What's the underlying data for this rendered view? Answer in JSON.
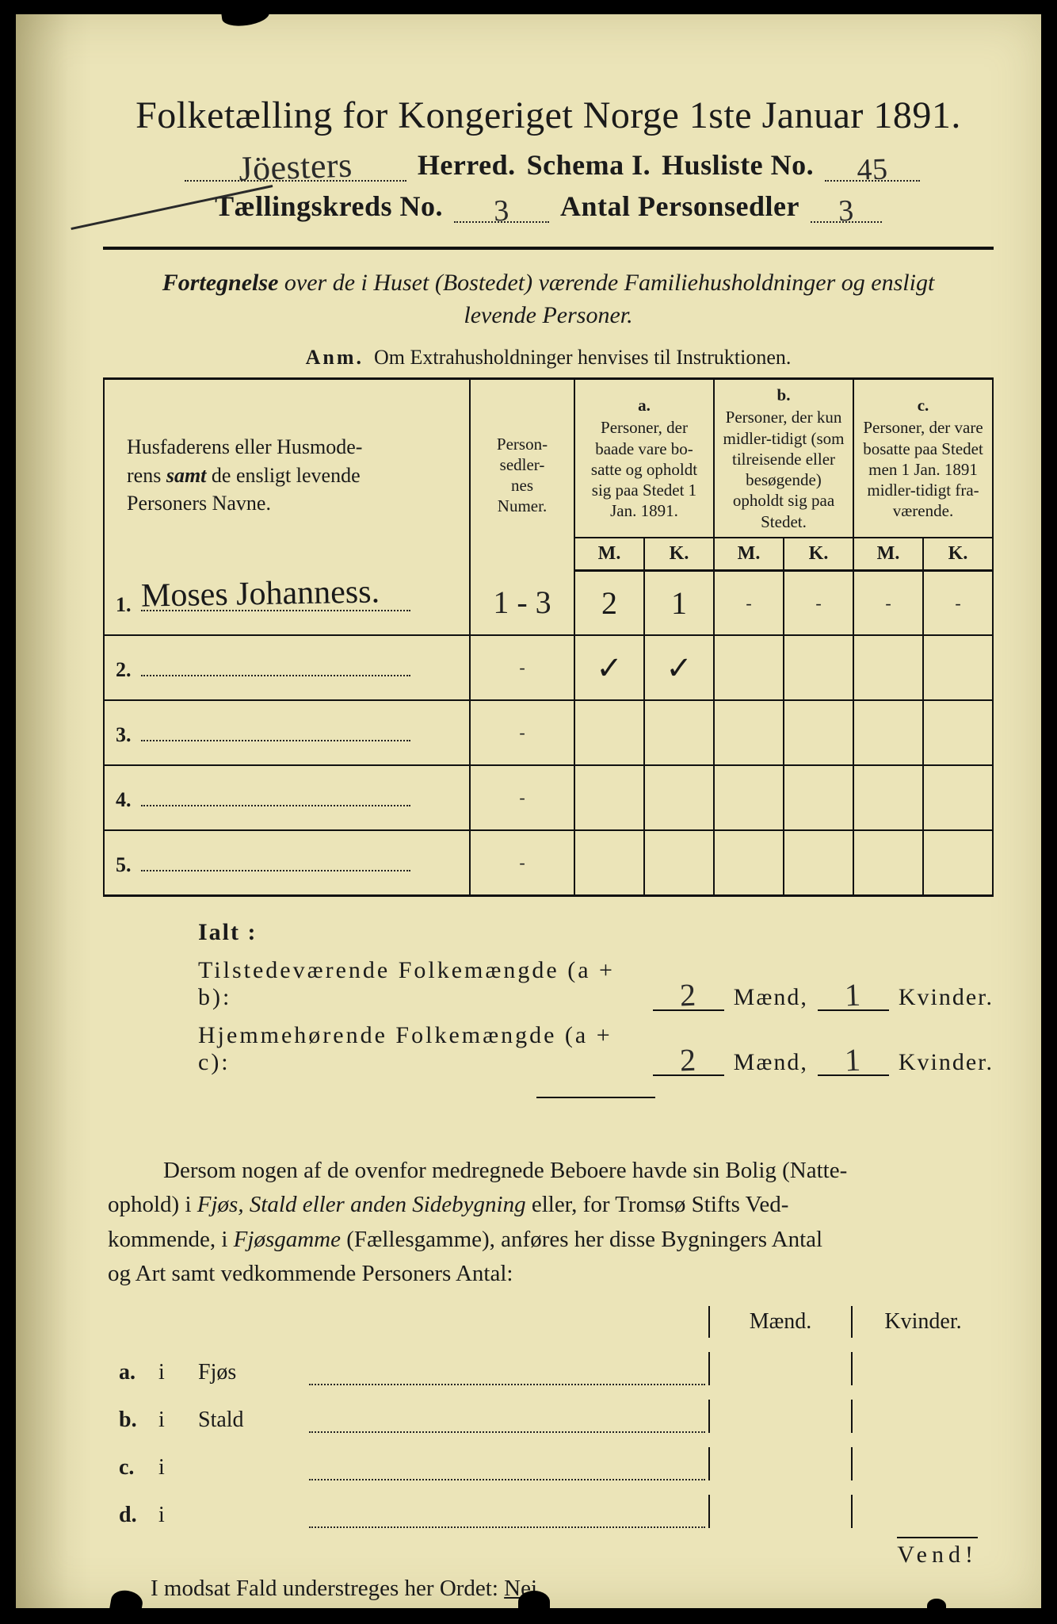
{
  "colors": {
    "paper": "#ebe4b8",
    "ink": "#1a1a1a",
    "frame": "#000000",
    "shadow": "rgba(100,90,40,0.35)"
  },
  "header": {
    "title": "Folketælling for Kongeriget Norge 1ste Januar 1891.",
    "herred_hand": "Jöesters",
    "herred_label": "Herred.",
    "schema_label": "Schema I.",
    "husliste_label": "Husliste No.",
    "husliste_hand": "45",
    "kreds_label": "Tællingskreds No.",
    "kreds_hand": "3",
    "antal_label": "Antal  Personsedler",
    "antal_hand": "3"
  },
  "intro": {
    "lead": "Fortegnelse",
    "rest1": " over de i Huset (Bostedet) værende Familiehusholdninger og ensligt",
    "rest2": "levende Personer.",
    "anm_lbl": "Anm.",
    "anm_txt": "Om Extrahusholdninger henvises til Instruktionen."
  },
  "table": {
    "col_name_hdr1": "Husfaderens eller Husmode-",
    "col_name_hdr2": "rens ",
    "col_name_hdr2_em": "samt",
    "col_name_hdr2b": " de ensligt levende",
    "col_name_hdr3": "Personers Navne.",
    "col_num_hdr": "Person-\nsedler-\nnes\nNumer.",
    "col_a_tag": "a.",
    "col_a_txt": "Personer, der baade vare bo-satte og opholdt sig paa Stedet 1 Jan. 1891.",
    "col_b_tag": "b.",
    "col_b_txt": "Personer, der kun midler-tidigt (som tilreisende eller besøgende) opholdt sig paa Stedet.",
    "col_c_tag": "c.",
    "col_c_txt": "Personer, der vare bosatte paa Stedet men 1 Jan. 1891 midler-tidigt fra-værende.",
    "mk_m": "M.",
    "mk_k": "K.",
    "rows": [
      {
        "n": "1.",
        "name_hand": "Moses Johanness.",
        "num": "1 - 3",
        "a_m": "2",
        "a_k": "1",
        "b_m": "-",
        "b_k": "-",
        "c_m": "-",
        "c_k": "-"
      },
      {
        "n": "2.",
        "name_hand": "",
        "num": "-",
        "a_m": "✓",
        "a_k": "✓",
        "b_m": "",
        "b_k": "",
        "c_m": "",
        "c_k": ""
      },
      {
        "n": "3.",
        "name_hand": "",
        "num": "-",
        "a_m": "",
        "a_k": "",
        "b_m": "",
        "b_k": "",
        "c_m": "",
        "c_k": ""
      },
      {
        "n": "4.",
        "name_hand": "",
        "num": "-",
        "a_m": "",
        "a_k": "",
        "b_m": "",
        "b_k": "",
        "c_m": "",
        "c_k": ""
      },
      {
        "n": "5.",
        "name_hand": "",
        "num": "-",
        "a_m": "",
        "a_k": "",
        "b_m": "",
        "b_k": "",
        "c_m": "",
        "c_k": ""
      }
    ]
  },
  "ialt": {
    "label": "Ialt :",
    "row1_a": "Tilstedeværende Folkemængde (a + b):",
    "row1_m": "2",
    "row1_m_lbl": "Mænd,",
    "row1_k": "1",
    "row1_k_lbl": "Kvinder.",
    "row2_a": "Hjemmehørende Folkemængde (a + c):",
    "row2_m": "2",
    "row2_m_lbl": "Mænd,",
    "row2_k": "1",
    "row2_k_lbl": "Kvinder."
  },
  "para": {
    "text1": "Dersom nogen af de ovenfor medregnede Beboere havde sin Bolig (Natte-",
    "text2": "ophold) i ",
    "em1": "Fjøs, Stald eller anden Sidebygning",
    "text3": " eller, for Tromsø Stifts Ved-",
    "text4": "kommende, i ",
    "em2": "Fjøsgamme",
    "text5": " (Fællesgamme), anføres her disse Bygningers Antal",
    "text6": "og Art samt vedkommende Personers Antal:"
  },
  "mk_head": {
    "m": "Mænd.",
    "k": "Kvinder."
  },
  "bld": [
    {
      "lbl": "a.",
      "i": "i",
      "what": "Fjøs"
    },
    {
      "lbl": "b.",
      "i": "i",
      "what": "Stald"
    },
    {
      "lbl": "c.",
      "i": "i",
      "what": ""
    },
    {
      "lbl": "d.",
      "i": "i",
      "what": ""
    }
  ],
  "footer": {
    "text": "I modsat Fald understreges her Ordet: ",
    "nei": "Nei."
  },
  "vend": "Vend!"
}
